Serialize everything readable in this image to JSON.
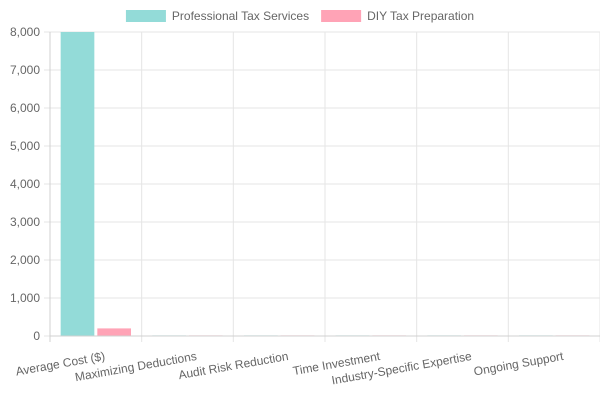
{
  "chart_data": {
    "type": "bar",
    "categories": [
      "Average Cost ($)",
      "Maximizing Deductions",
      "Audit Risk Reduction",
      "Time Investment",
      "Industry-Specific Expertise",
      "Ongoing Support"
    ],
    "series": [
      {
        "name": "Professional Tax Services",
        "color": "#93dbd8",
        "values": [
          8000,
          0,
          0,
          0,
          0,
          0
        ]
      },
      {
        "name": "DIY Tax Preparation",
        "color": "#ffa3b6",
        "values": [
          200,
          0,
          0,
          0,
          0,
          0
        ]
      }
    ],
    "y_ticks": [
      "0",
      "1,000",
      "2,000",
      "3,000",
      "4,000",
      "5,000",
      "6,000",
      "7,000",
      "8,000"
    ],
    "ylim": [
      0,
      8000
    ],
    "grid": true,
    "legend_position": "top-center"
  }
}
